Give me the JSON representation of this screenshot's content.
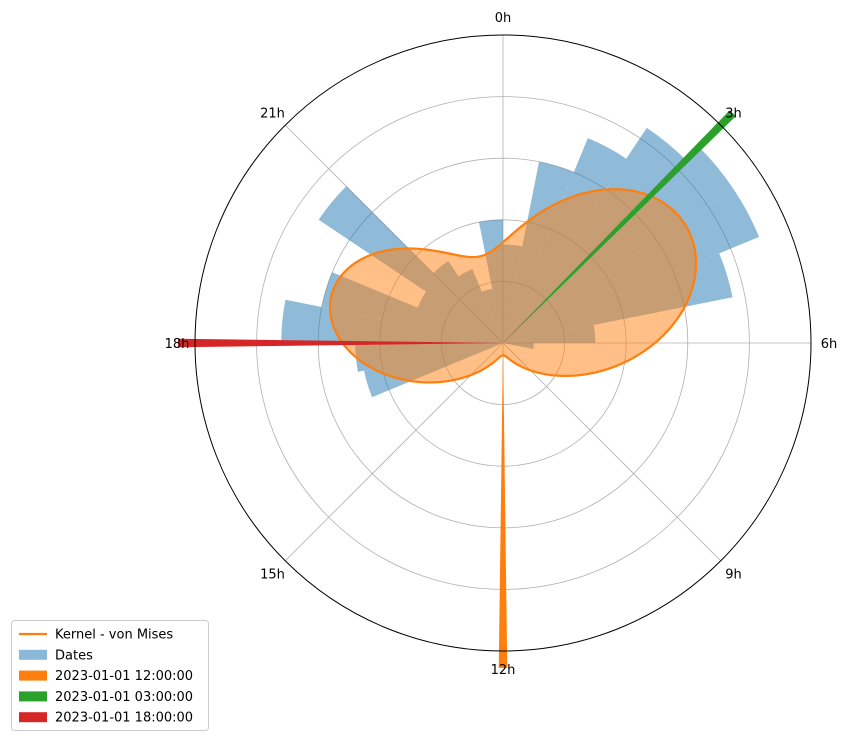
{
  "chart_data": {
    "type": "polar-histogram",
    "theta_direction": "clockwise",
    "theta_zero": "top",
    "theta_tick_labels": [
      "0h",
      "3h",
      "6h",
      "9h",
      "12h",
      "15h",
      "18h",
      "21h"
    ],
    "r_grid_values": [
      1,
      2,
      3,
      4
    ],
    "r_max": 5,
    "grid": true,
    "legend_location": "lower-left (outside)",
    "series": [
      {
        "name": "Dates",
        "kind": "bars",
        "color": "#1f77b4",
        "alpha": 0.5,
        "bin_width_hours": 0.75,
        "bars": [
          {
            "hour": 0.375,
            "r": 1.6
          },
          {
            "hour": 1.125,
            "r": 3.0
          },
          {
            "hour": 1.875,
            "r": 3.6
          },
          {
            "hour": 2.625,
            "r": 4.2
          },
          {
            "hour": 3.375,
            "r": 4.5
          },
          {
            "hour": 4.125,
            "r": 4.5
          },
          {
            "hour": 4.875,
            "r": 3.8
          },
          {
            "hour": 5.625,
            "r": 1.5
          },
          {
            "hour": 6.375,
            "r": 0.5
          },
          {
            "hour": 17.625,
            "r": 2.4
          },
          {
            "hour": 16.875,
            "r": 2.3
          },
          {
            "hour": 18.375,
            "r": 3.6
          },
          {
            "hour": 19.125,
            "r": 3.0
          },
          {
            "hour": 19.875,
            "r": 1.5
          },
          {
            "hour": 20.625,
            "r": 3.6
          },
          {
            "hour": 21.375,
            "r": 1.6
          },
          {
            "hour": 22.125,
            "r": 1.3
          },
          {
            "hour": 22.875,
            "r": 0.9
          },
          {
            "hour": 23.625,
            "r": 2.0
          }
        ]
      },
      {
        "name": "Kernel - von Mises",
        "kind": "line-filled",
        "color": "#ff7f0e",
        "fill_color": "#ff7f0e",
        "fill_alpha": 0.5,
        "kernel_components": [
          {
            "center_hour": 3.8,
            "kappa": 2.2,
            "weight": 3.5
          },
          {
            "center_hour": 19.0,
            "kappa": 2.8,
            "weight": 2.8
          }
        ]
      },
      {
        "name": "2023-01-01 12:00:00",
        "kind": "marker-bar",
        "color": "#ff7f0e",
        "hour": 12.0,
        "r": 5.0,
        "width_hours": 0.1
      },
      {
        "name": "2023-01-01 03:00:00",
        "kind": "marker-bar",
        "color": "#2ca02c",
        "hour": 3.0,
        "r": 5.0,
        "width_hours": 0.1
      },
      {
        "name": "2023-01-01 18:00:00",
        "kind": "marker-bar",
        "color": "#d62728",
        "hour": 18.0,
        "r": 5.0,
        "width_hours": 0.1
      }
    ]
  },
  "legend": [
    {
      "label": "Kernel - von Mises",
      "symbol": "line",
      "color": "#ff7f0e"
    },
    {
      "label": "Dates",
      "symbol": "patch",
      "color": "#8cb8d9"
    },
    {
      "label": "2023-01-01 12:00:00",
      "symbol": "patch",
      "color": "#ff7f0e"
    },
    {
      "label": "2023-01-01 03:00:00",
      "symbol": "patch",
      "color": "#2ca02c"
    },
    {
      "label": "2023-01-01 18:00:00",
      "symbol": "patch",
      "color": "#d62728"
    }
  ]
}
